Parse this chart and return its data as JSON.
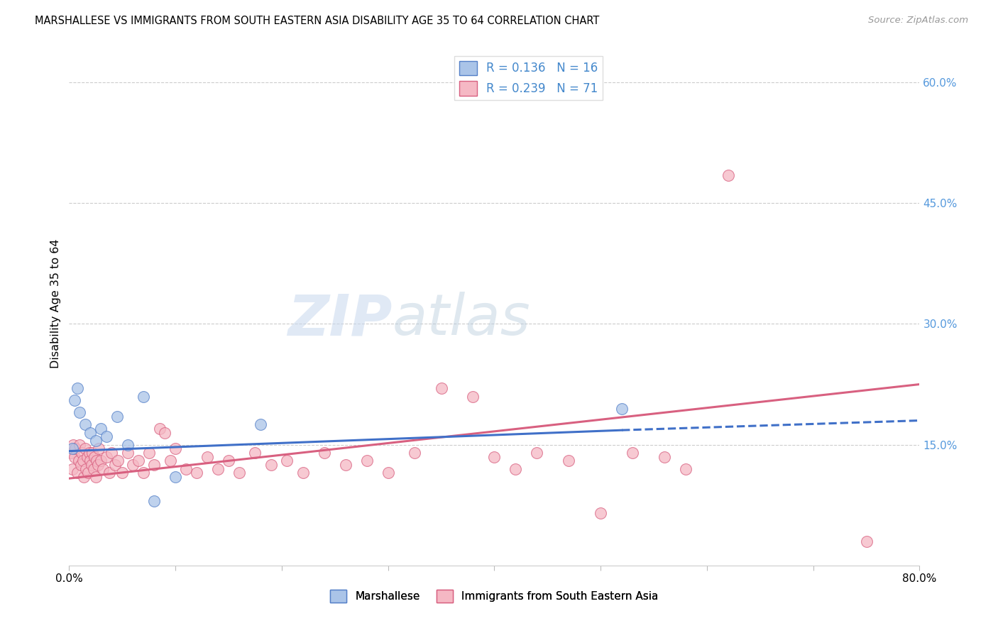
{
  "title": "MARSHALLESE VS IMMIGRANTS FROM SOUTH EASTERN ASIA DISABILITY AGE 35 TO 64 CORRELATION CHART",
  "source": "Source: ZipAtlas.com",
  "ylabel": "Disability Age 35 to 64",
  "x_tick_values": [
    0,
    10,
    20,
    30,
    40,
    50,
    60,
    70,
    80
  ],
  "y_tick_values": [
    15.0,
    30.0,
    45.0,
    60.0
  ],
  "y_tick_labels_right": [
    "15.0%",
    "30.0%",
    "45.0%",
    "60.0%"
  ],
  "xlim": [
    0,
    80
  ],
  "ylim": [
    0,
    65
  ],
  "legend_r_blue": "0.136",
  "legend_n_blue": "16",
  "legend_r_pink": "0.239",
  "legend_n_pink": "71",
  "blue_fill": "#aac4e8",
  "pink_fill": "#f5b8c4",
  "blue_edge": "#5580c8",
  "pink_edge": "#d86080",
  "blue_line": "#4070c8",
  "pink_line": "#d86080",
  "watermark_zip": "ZIP",
  "watermark_atlas": "atlas",
  "blue_scatter_x": [
    0.3,
    0.5,
    0.8,
    1.0,
    1.5,
    2.0,
    2.5,
    3.0,
    3.5,
    4.5,
    5.5,
    7.0,
    8.0,
    10.0,
    52.0,
    18.0
  ],
  "blue_scatter_y": [
    14.5,
    20.5,
    22.0,
    19.0,
    17.5,
    16.5,
    15.5,
    17.0,
    16.0,
    18.5,
    15.0,
    21.0,
    8.0,
    11.0,
    19.5,
    17.5
  ],
  "pink_scatter_x": [
    0.2,
    0.3,
    0.4,
    0.5,
    0.6,
    0.8,
    0.9,
    1.0,
    1.1,
    1.2,
    1.3,
    1.4,
    1.5,
    1.6,
    1.7,
    1.8,
    1.9,
    2.0,
    2.1,
    2.2,
    2.3,
    2.4,
    2.5,
    2.6,
    2.7,
    2.8,
    3.0,
    3.2,
    3.5,
    3.8,
    4.0,
    4.3,
    4.6,
    5.0,
    5.5,
    6.0,
    6.5,
    7.0,
    7.5,
    8.0,
    8.5,
    9.0,
    9.5,
    10.0,
    11.0,
    12.0,
    13.0,
    14.0,
    15.0,
    16.0,
    17.5,
    19.0,
    20.5,
    22.0,
    24.0,
    26.0,
    28.0,
    30.0,
    32.5,
    35.0,
    38.0,
    40.0,
    42.0,
    44.0,
    47.0,
    50.0,
    53.0,
    56.0,
    58.0,
    62.0,
    75.0
  ],
  "pink_scatter_y": [
    14.0,
    12.0,
    15.0,
    13.5,
    14.5,
    11.5,
    13.0,
    15.0,
    12.5,
    14.0,
    13.0,
    11.0,
    14.5,
    12.0,
    13.5,
    11.5,
    14.0,
    13.0,
    12.5,
    14.0,
    12.0,
    13.5,
    11.0,
    13.0,
    12.5,
    14.5,
    13.0,
    12.0,
    13.5,
    11.5,
    14.0,
    12.5,
    13.0,
    11.5,
    14.0,
    12.5,
    13.0,
    11.5,
    14.0,
    12.5,
    17.0,
    16.5,
    13.0,
    14.5,
    12.0,
    11.5,
    13.5,
    12.0,
    13.0,
    11.5,
    14.0,
    12.5,
    13.0,
    11.5,
    14.0,
    12.5,
    13.0,
    11.5,
    14.0,
    22.0,
    21.0,
    13.5,
    12.0,
    14.0,
    13.0,
    6.5,
    14.0,
    13.5,
    12.0,
    48.5,
    3.0
  ],
  "blue_trend_x0": 0,
  "blue_trend_x_solid_end": 52,
  "blue_trend_x_end": 80,
  "blue_trend_y0": 14.2,
  "blue_trend_y_solid_end": 16.8,
  "blue_trend_y_end": 18.0,
  "pink_trend_x0": 0,
  "pink_trend_x_end": 80,
  "pink_trend_y0": 10.8,
  "pink_trend_y_end": 22.5
}
